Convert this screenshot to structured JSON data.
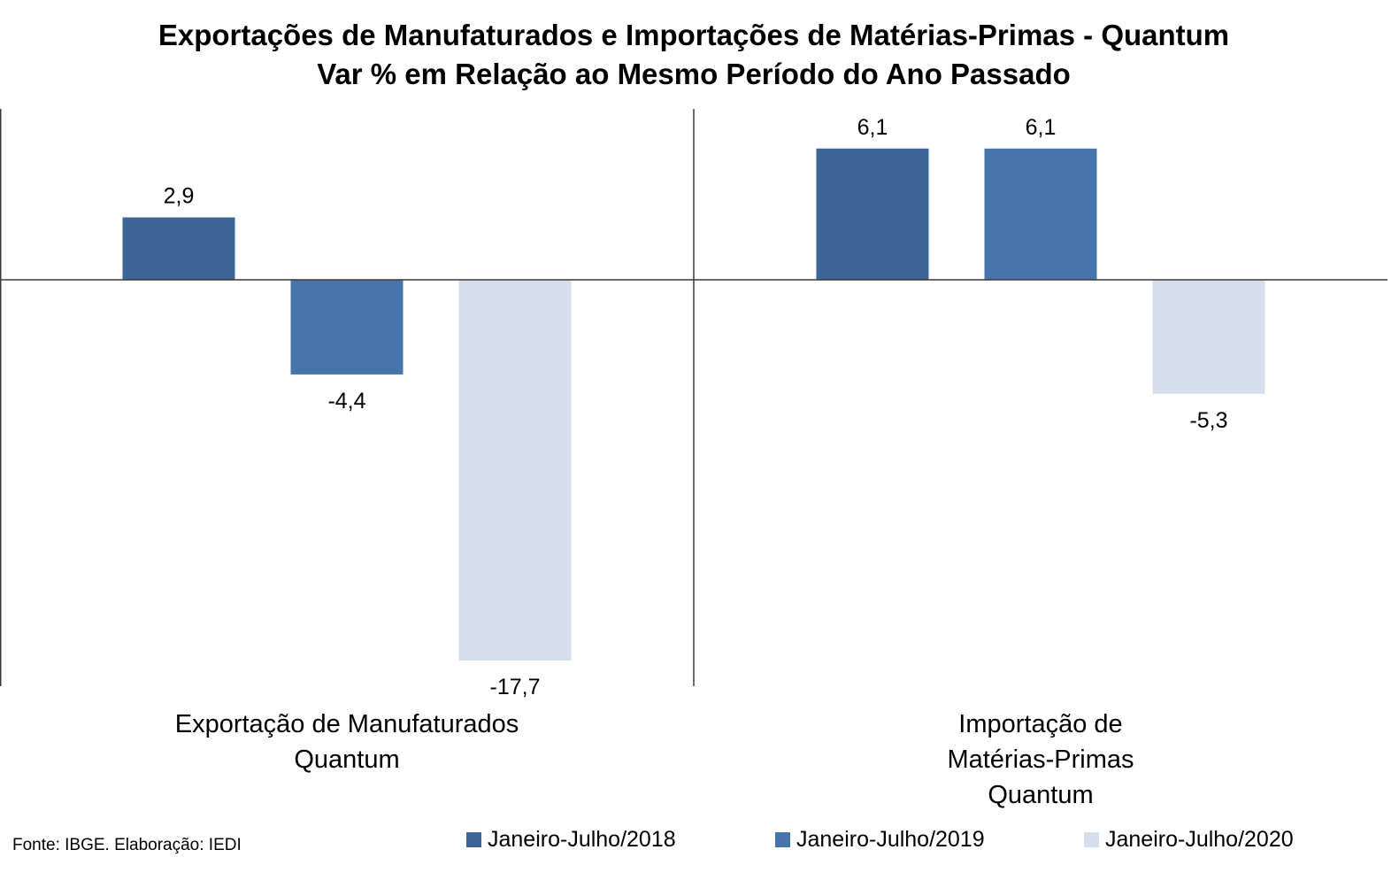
{
  "chart_data": {
    "type": "bar",
    "title": [
      "Exportações de Manufaturados e Importações de Matérias-Primas - Quantum",
      "Var % em Relação ao Mesmo Período do Ano Passado"
    ],
    "categories": [
      [
        "Exportação de Manufaturados",
        "Quantum"
      ],
      [
        "Importação de",
        "Matérias-Primas",
        "Quantum"
      ]
    ],
    "series": [
      {
        "name": "Janeiro-Julho/2018",
        "values": [
          2.9,
          6.1
        ],
        "labels": [
          "2,9",
          "6,1"
        ],
        "color": "#3e6496"
      },
      {
        "name": "Janeiro-Julho/2019",
        "values": [
          -4.4,
          6.1
        ],
        "labels": [
          "-4,4",
          "6,1"
        ],
        "color": "#4775ab"
      },
      {
        "name": "Janeiro-Julho/2020",
        "values": [
          -17.7,
          -5.3
        ],
        "labels": [
          "-17,7",
          "-5,3"
        ],
        "color": "#d5deeb"
      }
    ],
    "ylim": [
      -19,
      8
    ],
    "grid": false,
    "legend_position": "bottom",
    "xlabel": "",
    "ylabel": ""
  },
  "source_note": "Fonte: IBGE. Elaboração: IEDI"
}
